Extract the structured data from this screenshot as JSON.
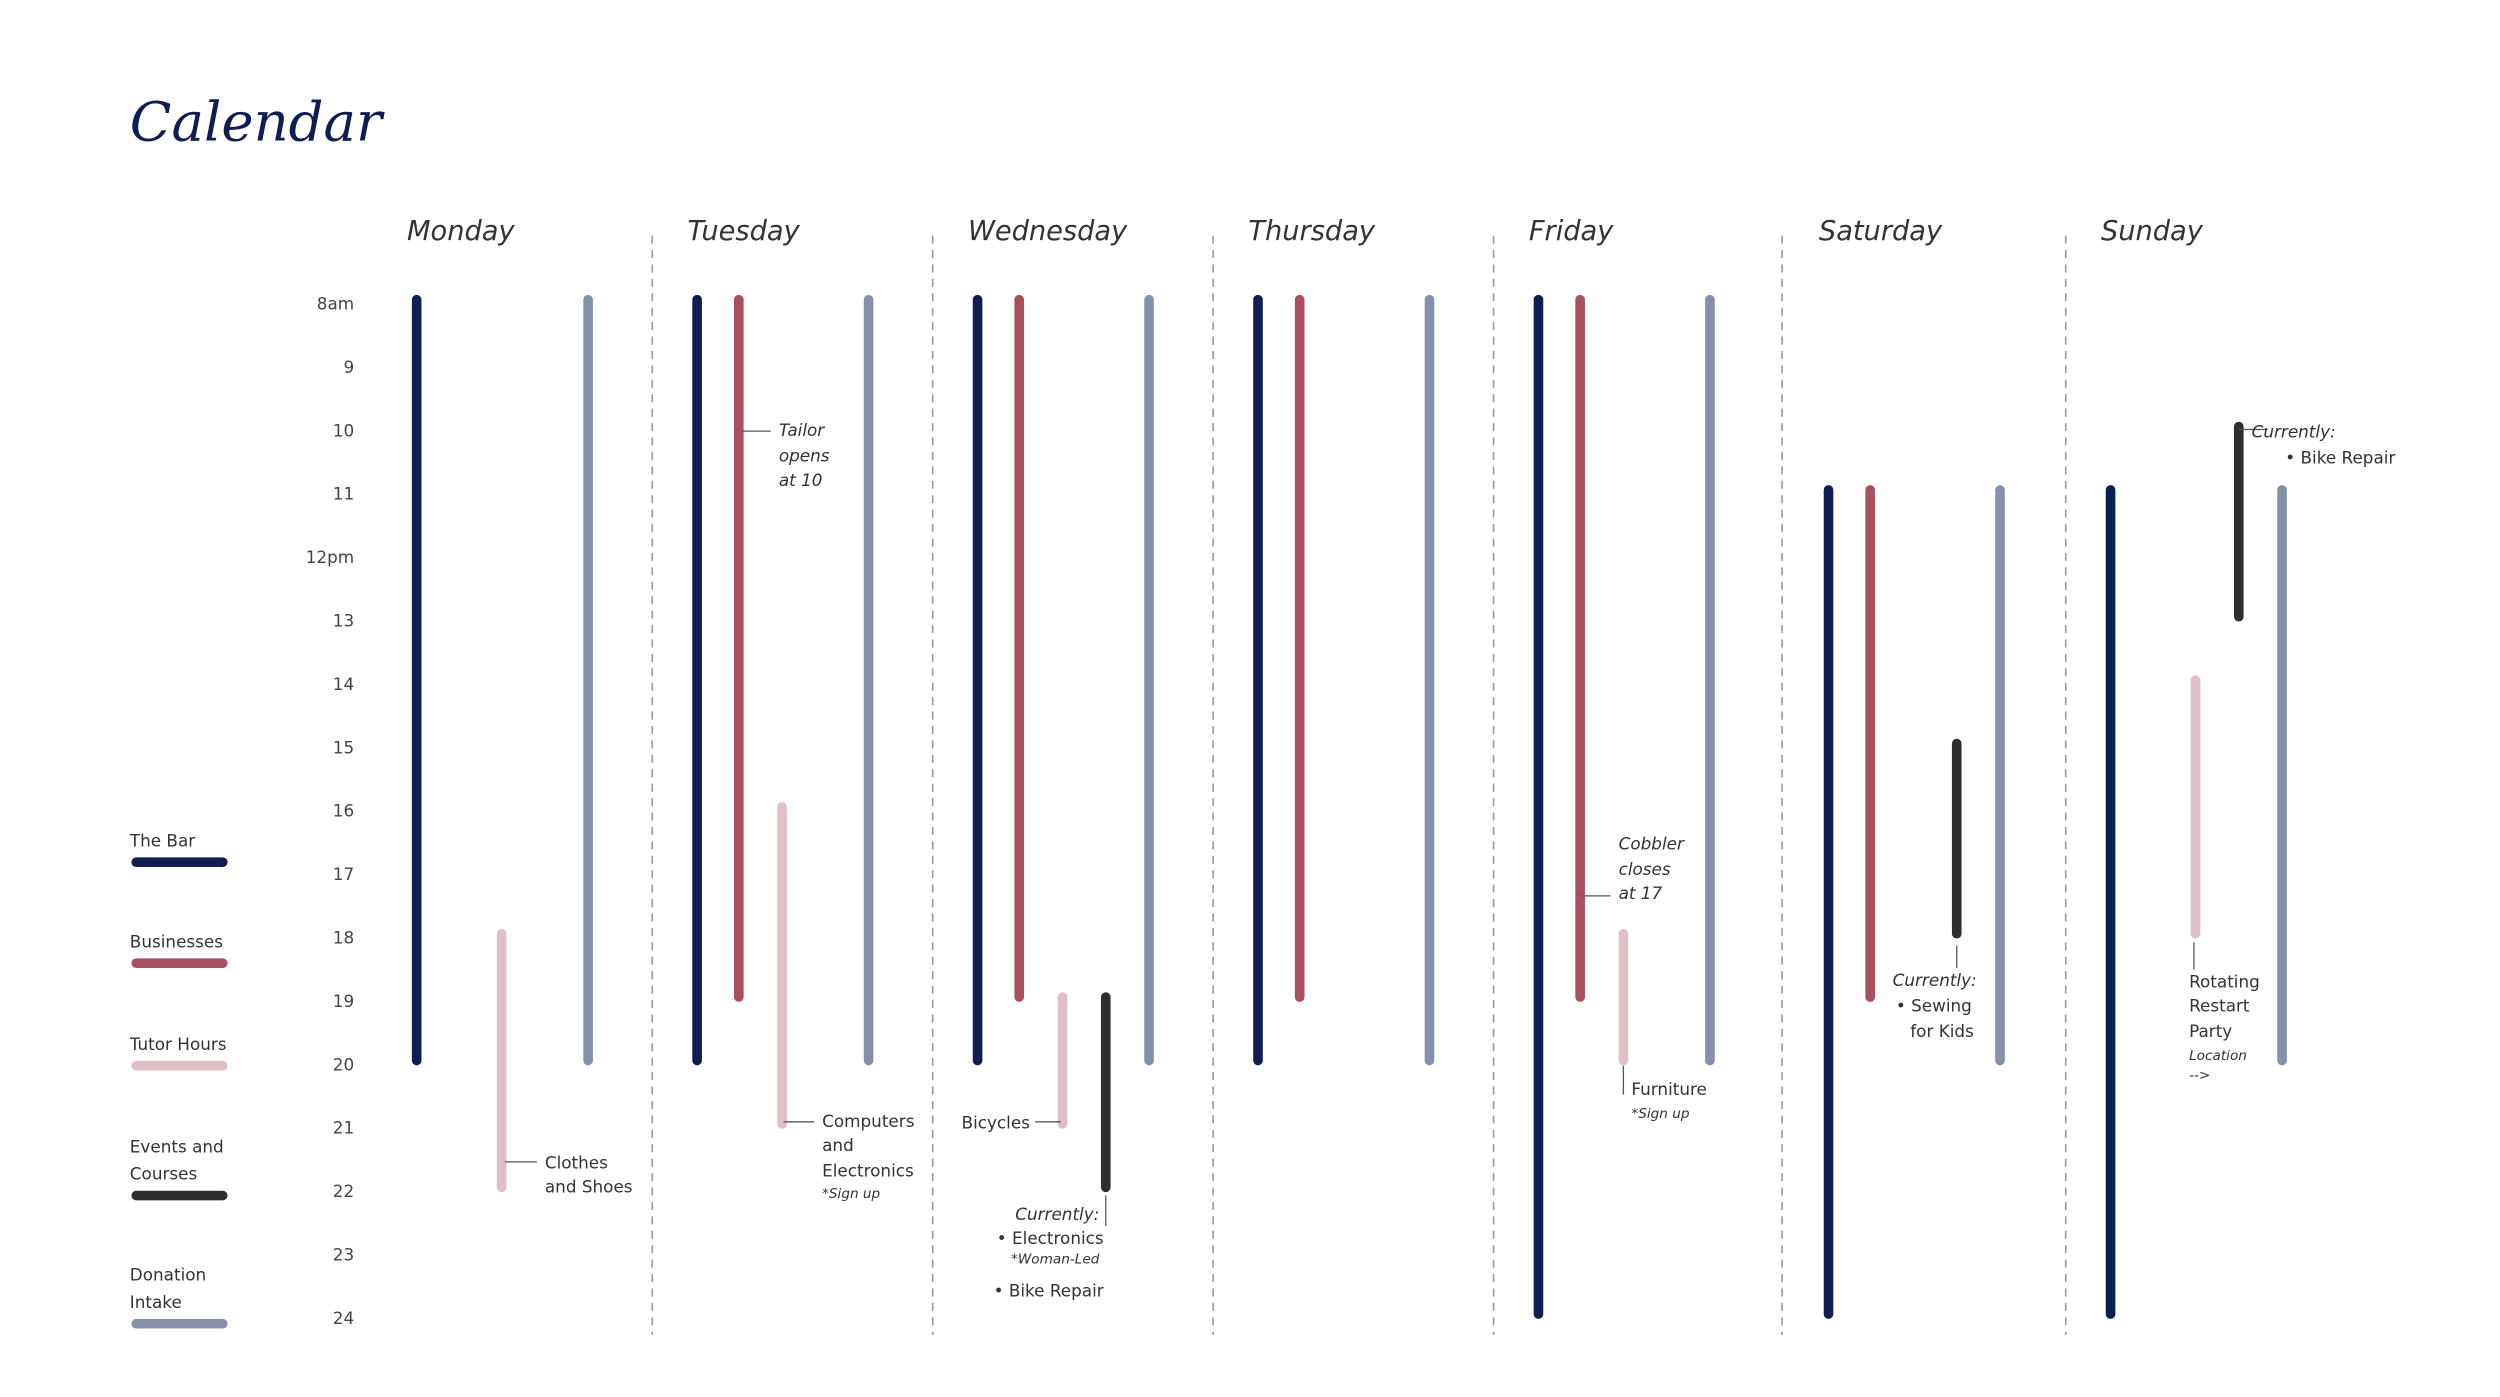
{
  "title": "Calendar",
  "hours": [
    {
      "value": 8,
      "label": "8am"
    },
    9,
    10,
    11,
    {
      "value": 12,
      "label": "12pm"
    },
    13,
    14,
    15,
    16,
    17,
    18,
    19,
    20,
    21,
    22,
    23,
    24
  ],
  "legend": [
    {
      "name": [
        "The Bar"
      ],
      "color": "#0f1d52"
    },
    {
      "name": [
        "Businesses"
      ],
      "color": "#a84f60"
    },
    {
      "name": [
        "Tutor Hours"
      ],
      "color": "#e0c0c6"
    },
    {
      "name": [
        "Events and",
        "Courses"
      ],
      "color": "#2e2e2e"
    },
    {
      "name": [
        "Donation",
        "Intake"
      ],
      "color": "#8590ab"
    }
  ],
  "days": [
    {
      "name": "Monday",
      "events": [
        {
          "lane": 0,
          "start": 8,
          "end": 20
        },
        {
          "lane": 2,
          "start": 18,
          "end": 22
        },
        {
          "lane": 4,
          "start": 8,
          "end": 20
        }
      ],
      "notes": [
        {
          "lines": [
            "Clothes",
            "and Shoes"
          ]
        }
      ]
    },
    {
      "name": "Tuesday",
      "events": [
        {
          "lane": 0,
          "start": 8,
          "end": 20
        },
        {
          "lane": 1,
          "start": 8,
          "end": 19
        },
        {
          "lane": 2,
          "start": 16,
          "end": 21
        },
        {
          "lane": 4,
          "start": 8,
          "end": 20
        }
      ],
      "notes": [
        {
          "lines": [
            "Tailor",
            "opens",
            "at 10"
          ]
        },
        {
          "lines": [
            "Computers",
            "and",
            "Electronics",
            "*Sign up"
          ]
        }
      ]
    },
    {
      "name": "Wednesday",
      "events": [
        {
          "lane": 0,
          "start": 8,
          "end": 20
        },
        {
          "lane": 1,
          "start": 8,
          "end": 19
        },
        {
          "lane": 2,
          "start": 19,
          "end": 21
        },
        {
          "lane": 3,
          "start": 19,
          "end": 22
        },
        {
          "lane": 4,
          "start": 8,
          "end": 20
        }
      ],
      "notes": [
        {
          "lines": [
            "Bicycles"
          ]
        },
        {
          "lines": [
            "Currently:",
            "• Electronics",
            "*Woman-Led",
            "• Bike Repair"
          ]
        }
      ]
    },
    {
      "name": "Thursday",
      "events": [
        {
          "lane": 0,
          "start": 8,
          "end": 20
        },
        {
          "lane": 1,
          "start": 8,
          "end": 19
        },
        {
          "lane": 4,
          "start": 8,
          "end": 20
        }
      ],
      "notes": []
    },
    {
      "name": "Friday",
      "events": [
        {
          "lane": 0,
          "start": 8,
          "end": 24
        },
        {
          "lane": 1,
          "start": 8,
          "end": 19
        },
        {
          "lane": 2,
          "start": 18,
          "end": 20
        },
        {
          "lane": 4,
          "start": 8,
          "end": 20
        }
      ],
      "notes": [
        {
          "lines": [
            "Cobbler",
            "closes",
            "at 17"
          ]
        },
        {
          "lines": [
            "Furniture",
            "*Sign up"
          ]
        }
      ]
    },
    {
      "name": "Saturday",
      "events": [
        {
          "lane": 0,
          "start": 11,
          "end": 24
        },
        {
          "lane": 1,
          "start": 11,
          "end": 19
        },
        {
          "lane": 3,
          "start": 15,
          "end": 18
        },
        {
          "lane": 4,
          "start": 11,
          "end": 20
        }
      ],
      "notes": [
        {
          "lines": [
            "Currently:",
            "• Sewing",
            "for Kids"
          ]
        }
      ]
    },
    {
      "name": "Sunday",
      "events": [
        {
          "lane": 0,
          "start": 11,
          "end": 24
        },
        {
          "lane": 2,
          "start": 14,
          "end": 18
        },
        {
          "lane": 3,
          "start": 10,
          "end": 13
        },
        {
          "lane": 4,
          "start": 11,
          "end": 20
        }
      ],
      "notes": [
        {
          "lines": [
            "Currently:",
            "• Bike Repair"
          ]
        },
        {
          "lines": [
            "Rotating",
            "Restart",
            "Party",
            "Location",
            "-->"
          ]
        }
      ]
    }
  ]
}
